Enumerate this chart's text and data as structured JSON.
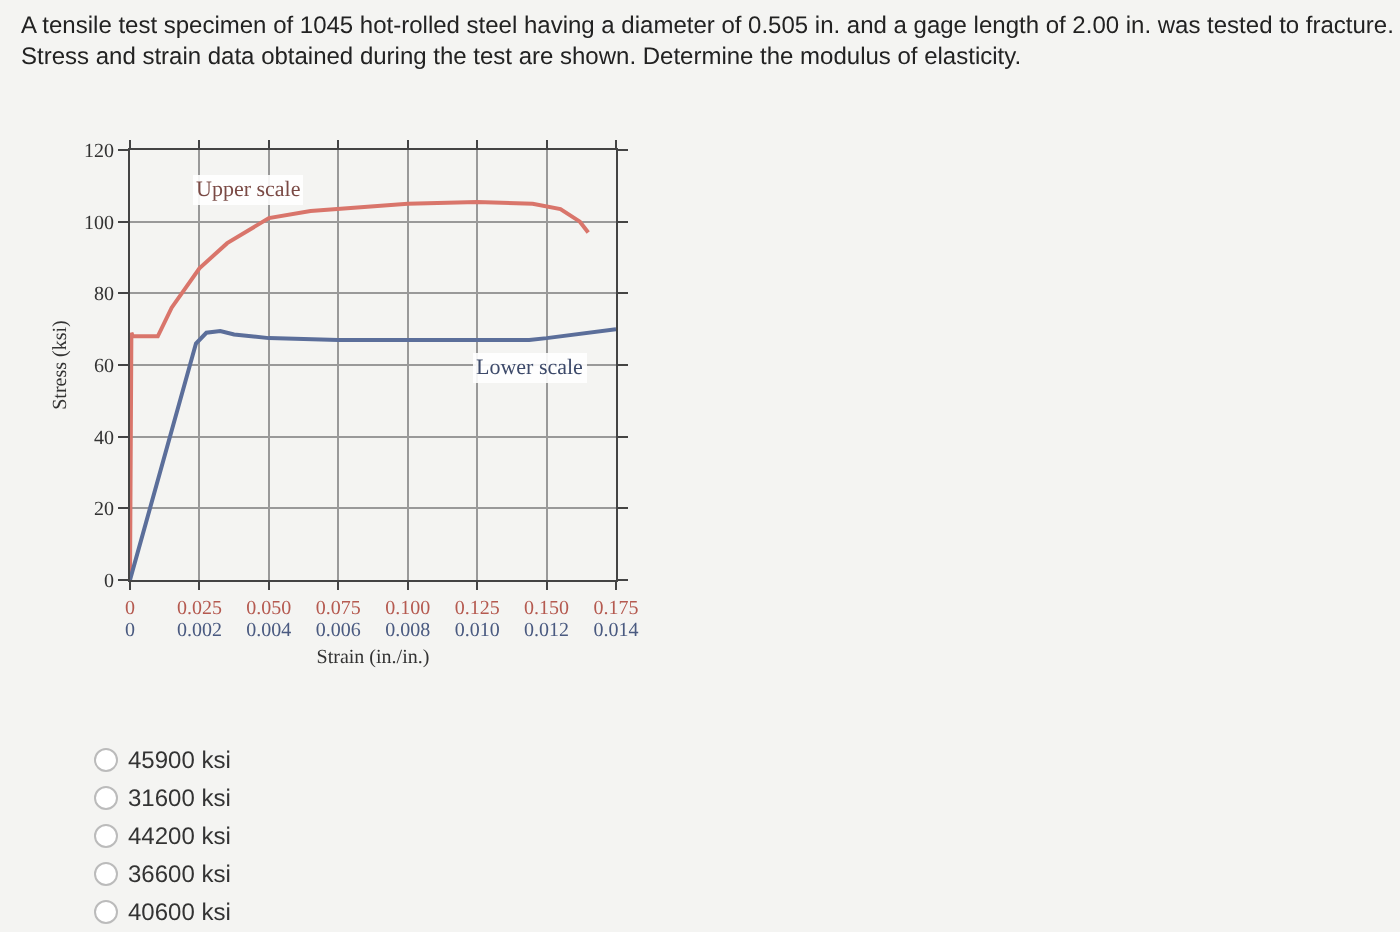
{
  "chart_data": {
    "type": "line",
    "title": "A tensile test specimen of 1045 hot-rolled steel having a diameter of 0.505 in. and a gage length of 2.00 in. was tested to fracture.",
    "subtitle": "Stress and strain data obtained during the test are shown. Determine the modulus of elasticity.",
    "xlabel": "Strain (in./in.)",
    "ylabel": "Stress (ksi)",
    "xlim": [
      0,
      0.175
    ],
    "xticks": [
      0,
      0.025,
      {
        "value": 0.05,
        "label": "0.050"
      },
      0.075,
      {
        "value": 0.1,
        "label": "0.100"
      },
      0.125,
      {
        "value": 0.15,
        "label": "0.150"
      },
      0.175
    ],
    "x2lim": [
      0,
      0.014
    ],
    "x2ticks": [
      0,
      0.002,
      0.004,
      0.006,
      0.008,
      {
        "value": 0.01,
        "label": "0.010"
      },
      0.012,
      0.014
    ],
    "ylim": [
      0,
      120
    ],
    "yticks": [
      0,
      20,
      40,
      60,
      80,
      100,
      120
    ],
    "grid": true,
    "legend": false,
    "series": [
      {
        "name": "Upper scale",
        "color": "#d9756b",
        "x": [
          0,
          0.0005,
          0.001,
          0.002,
          0.01,
          0.015,
          0.025,
          0.035,
          0.05,
          0.065,
          0.1,
          0.125,
          0.145,
          0.155,
          0.162,
          0.165
        ],
        "values": [
          0,
          69,
          68,
          68,
          68,
          76,
          87,
          94,
          101,
          103,
          105,
          105.5,
          105,
          103.5,
          100,
          97
        ]
      },
      {
        "name": "Lower scale",
        "color": "#5b6e9a",
        "axis": "x2",
        "x": [
          0,
          0.0019,
          0.0022,
          0.0026,
          0.003,
          0.004,
          0.006,
          0.0115,
          0.012,
          0.014
        ],
        "values": [
          0,
          66,
          69,
          69.5,
          68.5,
          67.5,
          67,
          67,
          67.5,
          70
        ]
      }
    ],
    "annotations": [
      "45900 ksi",
      "31600 ksi",
      "44200 ksi",
      "36600 ksi",
      "40600 ksi"
    ]
  }
}
